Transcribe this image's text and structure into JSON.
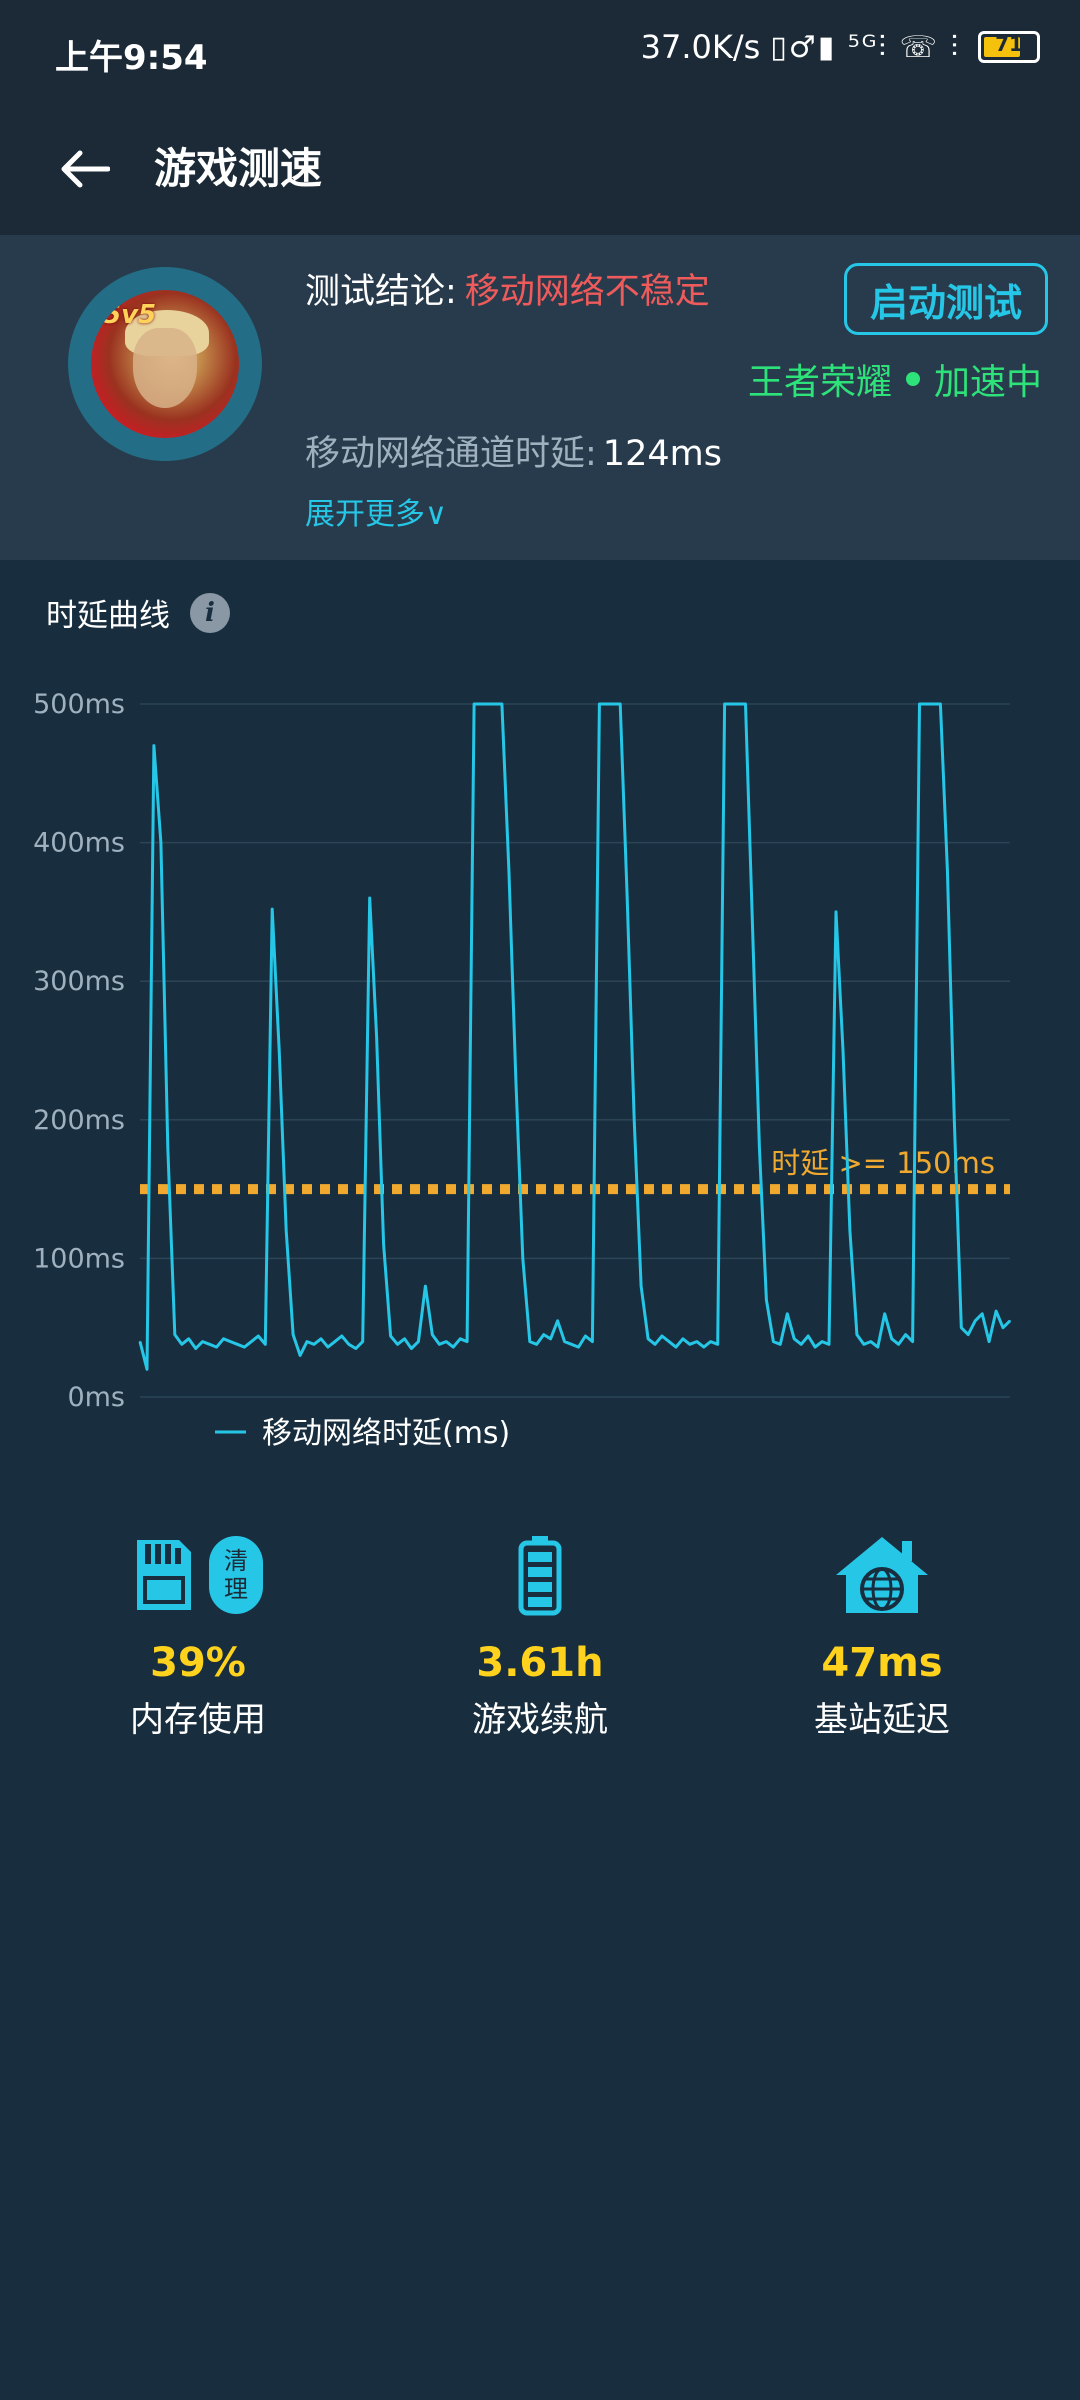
{
  "status_bar": {
    "time": "上午9:54",
    "net_speed": "37.0K/s",
    "icons_text": "▯♂▮ ⁵ᴳ⫶ ☏ ⫶",
    "battery_level": "71"
  },
  "header": {
    "title": "游戏测速"
  },
  "summary": {
    "conclusion_label": "测试结论:",
    "conclusion_value": "移动网络不稳定",
    "start_button": "启动测试",
    "game_name": "王者荣耀",
    "game_state": "加速中",
    "latency_label": "移动网络通道时延:",
    "latency_value": "124ms",
    "expand_more": "展开更多∨",
    "avatar_tag": "5v5"
  },
  "chart_section": {
    "title": "时延曲线",
    "info_icon": "i"
  },
  "chart_data": {
    "type": "line",
    "y_ticks": [
      "500ms",
      "400ms",
      "300ms",
      "200ms",
      "100ms",
      "0ms"
    ],
    "ylim": [
      0,
      500
    ],
    "grid": true,
    "threshold": 150,
    "threshold_label": "时延 >= 150ms",
    "series": [
      {
        "name": "移动网络时延(ms)",
        "color": "#26c6e6",
        "values": [
          40,
          20,
          470,
          400,
          180,
          45,
          38,
          42,
          35,
          40,
          38,
          36,
          42,
          40,
          38,
          36,
          40,
          44,
          38,
          352,
          250,
          120,
          45,
          30,
          40,
          38,
          42,
          36,
          40,
          44,
          38,
          35,
          40,
          360,
          260,
          110,
          44,
          38,
          42,
          35,
          40,
          80,
          45,
          38,
          40,
          36,
          42,
          40,
          500,
          500,
          500,
          500,
          500,
          380,
          230,
          100,
          40,
          38,
          45,
          42,
          55,
          40,
          38,
          36,
          44,
          40,
          500,
          500,
          500,
          500,
          360,
          200,
          80,
          42,
          38,
          44,
          40,
          36,
          42,
          38,
          40,
          36,
          40,
          38,
          500,
          500,
          500,
          500,
          340,
          180,
          70,
          40,
          38,
          60,
          42,
          38,
          44,
          36,
          40,
          38,
          350,
          250,
          120,
          45,
          38,
          40,
          36,
          60,
          42,
          38,
          45,
          40,
          500,
          500,
          500,
          500,
          380,
          200,
          50,
          45,
          55,
          60,
          40,
          62,
          50,
          55
        ]
      }
    ]
  },
  "stats": [
    {
      "value": "39%",
      "label": "内存使用",
      "icon": "sd-card-icon",
      "extra_button": "清\n理"
    },
    {
      "value": "3.61h",
      "label": "游戏续航",
      "icon": "battery-icon"
    },
    {
      "value": "47ms",
      "label": "基站延迟",
      "icon": "base-station-icon"
    }
  ],
  "colors": {
    "accent": "#26c6e6",
    "warning": "#ef5b5b",
    "success": "#2ee27a",
    "threshold": "#f0a92e",
    "stat_value": "#ffd21e"
  }
}
